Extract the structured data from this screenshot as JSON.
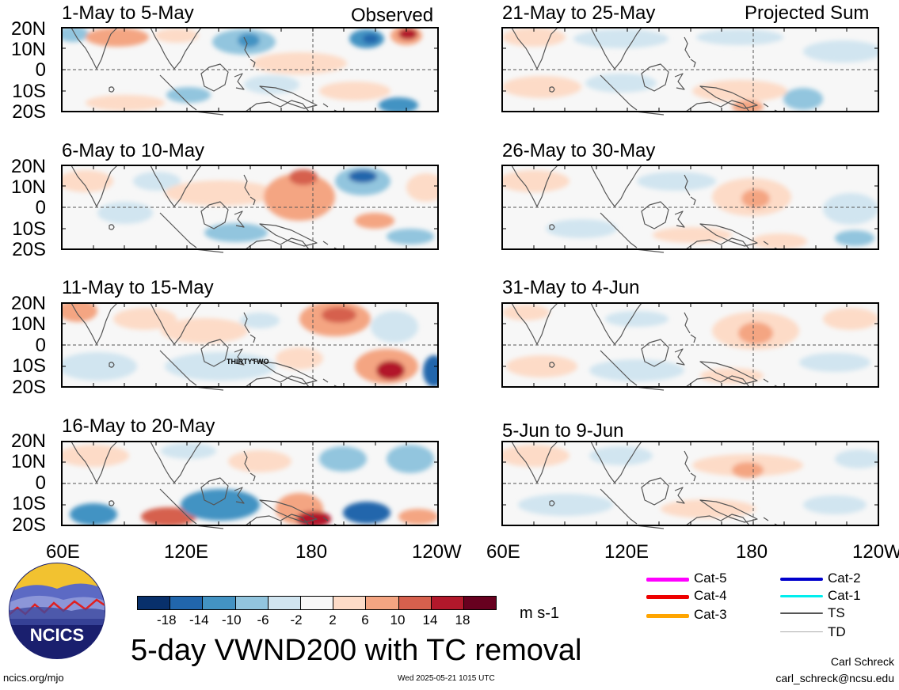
{
  "figure_title": "5-day VWND200 with TC removal",
  "column_tags": {
    "left": "Observed",
    "right": "Projected Sum"
  },
  "panels": [
    {
      "id": "p1",
      "title": "1-May to 5-May"
    },
    {
      "id": "p2",
      "title": "6-May to 10-May"
    },
    {
      "id": "p3",
      "title": "11-May to 15-May"
    },
    {
      "id": "p4",
      "title": "16-May to 20-May"
    },
    {
      "id": "p5",
      "title": "21-May to 25-May"
    },
    {
      "id": "p6",
      "title": "26-May to 30-May"
    },
    {
      "id": "p7",
      "title": "31-May to 4-Jun"
    },
    {
      "id": "p8",
      "title": "5-Jun to 9-Jun"
    }
  ],
  "latitude_labels": [
    "20N",
    "10N",
    "0",
    "10S",
    "20S"
  ],
  "longitude_labels": [
    "60E",
    "120E",
    "180",
    "120W"
  ],
  "storm_label": "THIRTYTWO",
  "colorbar": {
    "colors": [
      "#08306b",
      "#2166ac",
      "#4393c3",
      "#92c5de",
      "#d1e5f0",
      "#f7f7f7",
      "#fddbc7",
      "#f4a582",
      "#d6604d",
      "#b2182b",
      "#67001f"
    ],
    "tick_labels": [
      "-18",
      "-14",
      "-10",
      "-6",
      "-2",
      "2",
      "6",
      "10",
      "14",
      "18"
    ],
    "units": "m s-1"
  },
  "tc_legend": [
    {
      "label": "Cat-5",
      "color": "#ff00ff"
    },
    {
      "label": "Cat-4",
      "color": "#ee0000"
    },
    {
      "label": "Cat-3",
      "color": "#ffa500"
    },
    {
      "label": "Cat-2",
      "color": "#0000cc"
    },
    {
      "label": "Cat-1",
      "color": "#00eeee"
    },
    {
      "label": "TS",
      "color": "#555555"
    },
    {
      "label": "TD",
      "color": "#aaaaaa"
    }
  ],
  "logo": {
    "text": "NCICS"
  },
  "footer": {
    "site": "ncics.org/mjo",
    "timestamp": "Wed 2025-05-21 1015 UTC",
    "author": "Carl Schreck",
    "email": "carl_schreck@ncsu.edu"
  }
}
